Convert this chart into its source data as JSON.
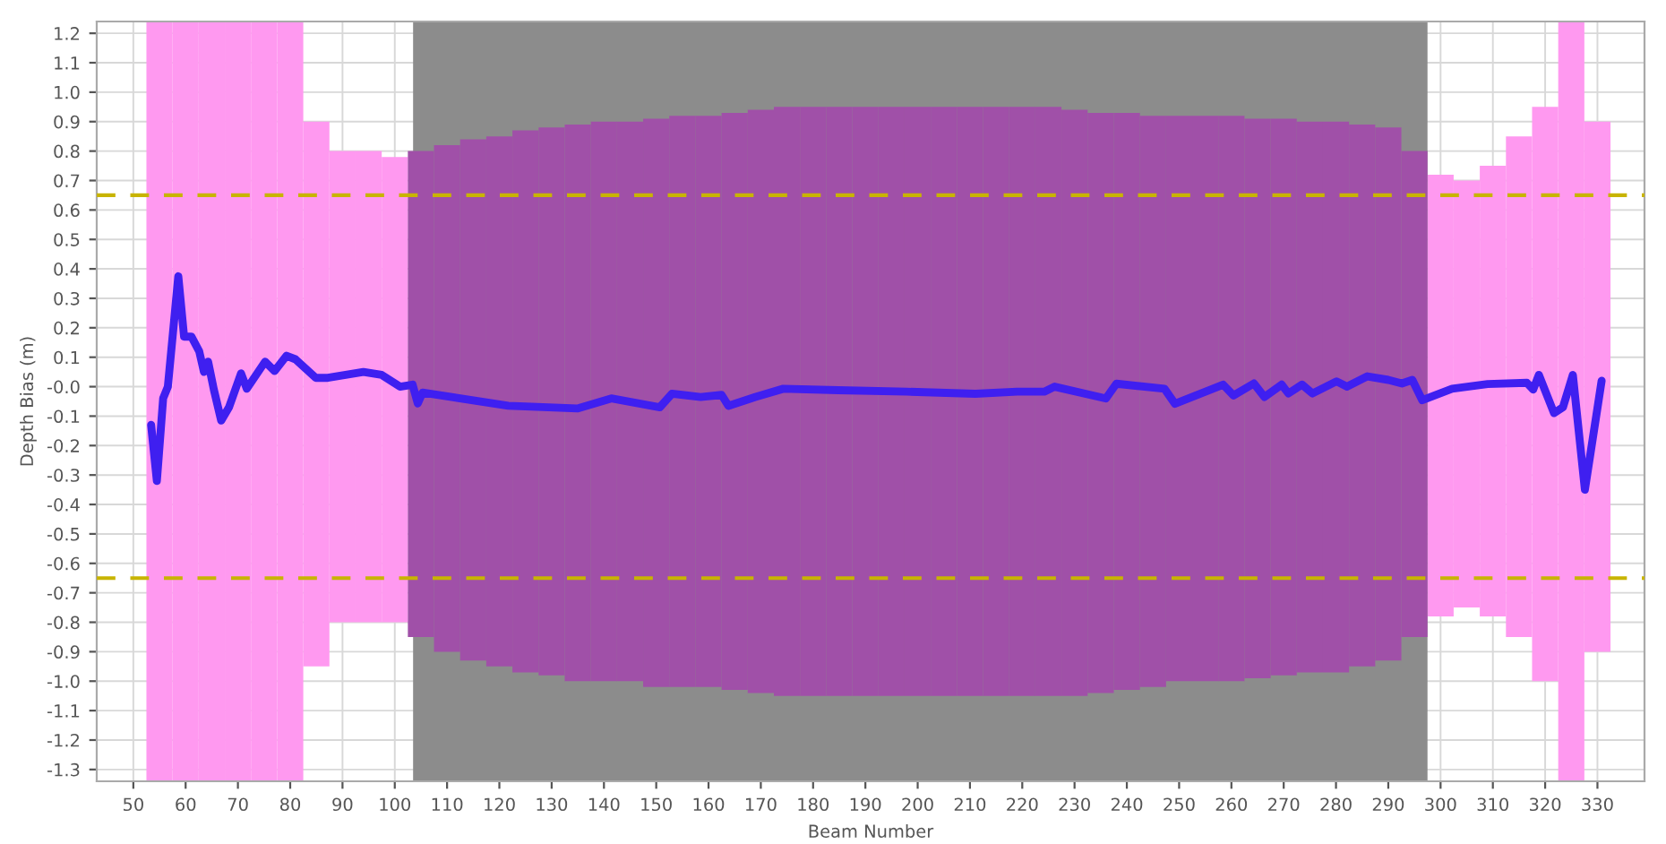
{
  "chart_data": {
    "type": "line",
    "xlabel": "Beam Number",
    "ylabel": "Depth Bias (m)",
    "xlim": [
      43,
      339
    ],
    "xticks": [
      50,
      60,
      70,
      80,
      90,
      100,
      110,
      120,
      130,
      140,
      150,
      160,
      170,
      180,
      190,
      200,
      210,
      220,
      230,
      240,
      250,
      260,
      270,
      280,
      290,
      300,
      310,
      320,
      330
    ],
    "ylim": [
      -1.34,
      1.24
    ],
    "yticks": [
      {
        "value": 1.2,
        "label": "1.2"
      },
      {
        "value": 1.1,
        "label": "1.1"
      },
      {
        "value": 1.0,
        "label": "1.0"
      },
      {
        "value": 0.9,
        "label": "0.9"
      },
      {
        "value": 0.8,
        "label": "0.8"
      },
      {
        "value": 0.7,
        "label": "0.7"
      },
      {
        "value": 0.6,
        "label": "0.6"
      },
      {
        "value": 0.5,
        "label": "0.5"
      },
      {
        "value": 0.4,
        "label": "0.4"
      },
      {
        "value": 0.3,
        "label": "0.3"
      },
      {
        "value": 0.2,
        "label": "0.2"
      },
      {
        "value": 0.1,
        "label": "0.1"
      },
      {
        "value": 0,
        "label": "-0.0"
      },
      {
        "value": -0.1,
        "label": "-0.1"
      },
      {
        "value": -0.2,
        "label": "-0.2"
      },
      {
        "value": -0.3,
        "label": "-0.3"
      },
      {
        "value": -0.4,
        "label": "-0.4"
      },
      {
        "value": -0.5,
        "label": "-0.5"
      },
      {
        "value": -0.6,
        "label": "-0.6"
      },
      {
        "value": -0.7,
        "label": "-0.7"
      },
      {
        "value": -0.8,
        "label": "-0.8"
      },
      {
        "value": -0.9,
        "label": "-0.9"
      },
      {
        "value": -1.0,
        "label": "-1.0"
      },
      {
        "value": -1.1,
        "label": "-1.1"
      },
      {
        "value": -1.2,
        "label": "-1.2"
      },
      {
        "value": -1.3,
        "label": "-1.3"
      }
    ],
    "grid": true,
    "bands": [
      {
        "axis": "x",
        "from": 103.5,
        "to": 297.5,
        "color": "#8c8c8c"
      }
    ],
    "ref_lines": [
      {
        "axis": "y",
        "value": 0.65,
        "color": "#c8b400",
        "line_style": "dashed"
      },
      {
        "axis": "y",
        "value": -0.65,
        "color": "#c8b400",
        "line_style": "dashed"
      }
    ],
    "series": [
      {
        "type": "bar",
        "color": "#ff99f0",
        "x": [
          55,
          60,
          65,
          70,
          75,
          80,
          85,
          90,
          95,
          100,
          300,
          305,
          310,
          315,
          320,
          325,
          330
        ],
        "base": [
          -1.34,
          -1.34,
          -1.34,
          -1.34,
          -1.34,
          -1.34,
          -0.95,
          -0.8,
          -0.8,
          -0.8,
          -0.78,
          -0.75,
          -0.78,
          -0.85,
          -1.0,
          -1.34,
          -0.9
        ],
        "values": [
          2.58,
          2.58,
          2.58,
          2.58,
          2.58,
          2.58,
          1.85,
          1.6,
          1.6,
          1.58,
          1.5,
          1.45,
          1.53,
          1.7,
          1.95,
          2.58,
          1.8
        ]
      },
      {
        "type": "bar",
        "color": "#a050a8",
        "x": [
          105,
          110,
          115,
          120,
          125,
          130,
          135,
          140,
          145,
          150,
          155,
          160,
          165,
          170,
          175,
          180,
          185,
          190,
          195,
          200,
          205,
          210,
          215,
          220,
          225,
          230,
          235,
          240,
          245,
          250,
          255,
          260,
          265,
          270,
          275,
          280,
          285,
          290,
          295
        ],
        "base": [
          -0.85,
          -0.9,
          -0.93,
          -0.95,
          -0.97,
          -0.98,
          -1.0,
          -1.0,
          -1.0,
          -1.02,
          -1.02,
          -1.02,
          -1.03,
          -1.04,
          -1.05,
          -1.05,
          -1.05,
          -1.05,
          -1.05,
          -1.05,
          -1.05,
          -1.05,
          -1.05,
          -1.05,
          -1.05,
          -1.05,
          -1.04,
          -1.03,
          -1.02,
          -1.0,
          -1.0,
          -1.0,
          -0.99,
          -0.98,
          -0.97,
          -0.97,
          -0.95,
          -0.93,
          -0.85
        ],
        "values": [
          1.65,
          1.72,
          1.77,
          1.8,
          1.84,
          1.86,
          1.89,
          1.9,
          1.9,
          1.93,
          1.94,
          1.94,
          1.96,
          1.98,
          2.0,
          2.0,
          2.0,
          2.0,
          2.0,
          2.0,
          2.0,
          2.0,
          2.0,
          2.0,
          2.0,
          1.99,
          1.97,
          1.96,
          1.94,
          1.92,
          1.92,
          1.92,
          1.9,
          1.89,
          1.87,
          1.87,
          1.84,
          1.81,
          1.65
        ]
      },
      {
        "color": "#3f1ff0",
        "x": [
          53.4,
          54.5,
          55.7,
          56.6,
          58.6,
          59.7,
          61.1,
          62.6,
          63.5,
          64.3,
          65.4,
          66.8,
          68.3,
          70.6,
          71.7,
          75.2,
          77,
          79.3,
          81,
          84.9,
          87.2,
          94,
          97.5,
          101,
          103.4,
          104.4,
          105.3,
          121.7,
          134.9,
          141.4,
          150.7,
          153,
          158.5,
          162.5,
          163.8,
          169,
          174.3,
          184.8,
          197.9,
          211,
          219,
          224.2,
          226.2,
          236,
          238,
          247.2,
          249.2,
          258.4,
          260.4,
          264.3,
          266.3,
          269.6,
          270.9,
          273.5,
          275.5,
          280.1,
          282.1,
          286,
          290,
          292.6,
          294.6,
          296.5,
          302.2,
          309,
          316.5,
          317.7,
          318.8,
          321.7,
          323.4,
          325.3,
          327.6,
          330.8
        ],
        "values": [
          -0.13,
          -0.32,
          -0.04,
          0.0,
          0.375,
          0.17,
          0.17,
          0.12,
          0.05,
          0.085,
          -0.01,
          -0.115,
          -0.07,
          0.045,
          -0.007,
          0.085,
          0.053,
          0.105,
          0.093,
          0.03,
          0.03,
          0.05,
          0.04,
          0.0,
          0.007,
          -0.057,
          -0.02,
          -0.065,
          -0.074,
          -0.04,
          -0.07,
          -0.024,
          -0.035,
          -0.028,
          -0.065,
          -0.035,
          -0.007,
          -0.012,
          -0.017,
          -0.024,
          -0.017,
          -0.017,
          0.0,
          -0.04,
          0.01,
          -0.007,
          -0.058,
          0.007,
          -0.03,
          0.011,
          -0.035,
          0.007,
          -0.023,
          0.007,
          -0.023,
          0.018,
          0.0,
          0.035,
          0.023,
          0.011,
          0.023,
          -0.046,
          -0.007,
          0.009,
          0.013,
          -0.01,
          0.04,
          -0.09,
          -0.07,
          0.04,
          -0.35,
          0.02
        ]
      }
    ]
  }
}
